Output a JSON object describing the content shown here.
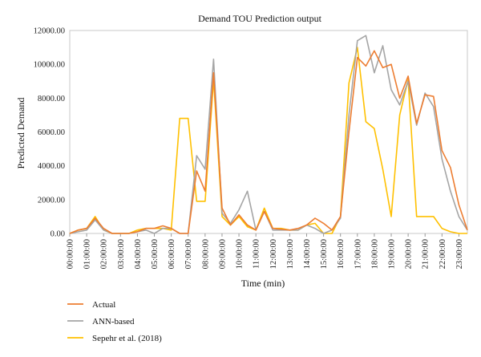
{
  "chart_data": {
    "type": "line",
    "title": "Demand TOU Prediction output",
    "xlabel": "Time (min)",
    "ylabel": "Predicted Demand",
    "ylim": [
      0,
      12000
    ],
    "yticks": [
      "0.00",
      "2000.00",
      "4000.00",
      "6000.00",
      "8000.00",
      "10000.00",
      "12000.00"
    ],
    "ytick_values": [
      0,
      2000,
      4000,
      6000,
      8000,
      10000,
      12000
    ],
    "xticks": [
      "00:00:00",
      "01:00:00",
      "02:00:00",
      "03:00:00",
      "04:00:00",
      "05:00:00",
      "06:00:00",
      "07:00:00",
      "08:00:00",
      "09:00:00",
      "10:00:00",
      "11:00:00",
      "12:00:00",
      "13:00:00",
      "14:00:00",
      "15:00:00",
      "16:00:00",
      "17:00:00",
      "18:00:00",
      "19:00:00",
      "20:00:00",
      "21:00:00",
      "22:00:00",
      "23:00:00"
    ],
    "x_hours": [
      0,
      0.5,
      1,
      1.5,
      2,
      2.5,
      3,
      3.5,
      4,
      4.5,
      5,
      5.5,
      6,
      6.5,
      7,
      7.5,
      8,
      8.5,
      9,
      9.5,
      10,
      10.5,
      11,
      11.5,
      12,
      12.5,
      13,
      13.5,
      14,
      14.5,
      15,
      15.5,
      16,
      16.5,
      17,
      17.5,
      18,
      18.5,
      19,
      19.5,
      20,
      20.5,
      21,
      21.5,
      22,
      22.5,
      23,
      23.5
    ],
    "grid": false,
    "legend_position": "bottom-left",
    "series": [
      {
        "name": "Actual",
        "color": "#ED7D31",
        "values": [
          0,
          200,
          300,
          900,
          300,
          0,
          0,
          0,
          100,
          300,
          300,
          450,
          300,
          0,
          0,
          3700,
          2500,
          9500,
          1500,
          500,
          1100,
          500,
          200,
          1300,
          300,
          250,
          200,
          300,
          500,
          900,
          600,
          200,
          1000,
          6000,
          10400,
          9900,
          10800,
          9800,
          10000,
          8000,
          9300,
          6500,
          8200,
          8100,
          4900,
          3900,
          1700,
          200
        ]
      },
      {
        "name": "ANN-based",
        "color": "#A5A5A5",
        "values": [
          0,
          100,
          200,
          800,
          200,
          0,
          0,
          0,
          100,
          200,
          0,
          300,
          300,
          0,
          0,
          4600,
          3800,
          10300,
          1200,
          600,
          1400,
          2500,
          200,
          1300,
          200,
          200,
          200,
          200,
          500,
          300,
          0,
          200,
          900,
          7000,
          11400,
          11700,
          9500,
          11100,
          8500,
          7600,
          9000,
          6400,
          8300,
          7500,
          4400,
          2500,
          1000,
          200
        ]
      },
      {
        "name": "Sepehr et al. (2018)",
        "color": "#FFC000",
        "values": [
          0,
          200,
          300,
          1000,
          200,
          0,
          0,
          0,
          200,
          300,
          300,
          300,
          200,
          6800,
          6800,
          1900,
          1900,
          9100,
          1000,
          500,
          1000,
          400,
          200,
          1500,
          300,
          300,
          200,
          200,
          500,
          600,
          0,
          0,
          1000,
          8900,
          11000,
          6600,
          6200,
          3800,
          1000,
          7000,
          9100,
          1000,
          1000,
          1000,
          300,
          100,
          0,
          0
        ]
      }
    ]
  }
}
